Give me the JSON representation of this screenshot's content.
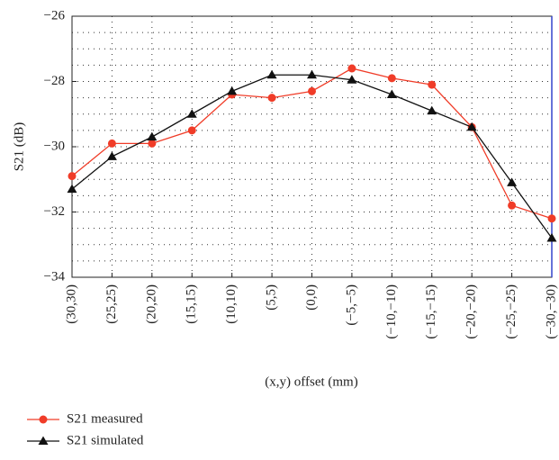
{
  "chart_data": {
    "type": "line",
    "ylabel": "S21 (dB)",
    "xlabel": "(x,y) offset (mm)",
    "categories": [
      "(30,30)",
      "(25,25)",
      "(20,20)",
      "(15,15)",
      "(10,10)",
      "(5,5)",
      "(0,0)",
      "(−5,−5)",
      "(−10,−10)",
      "(−15,−15)",
      "(−20,−20)",
      "(−25,−25)",
      "(−30,−30)"
    ],
    "series": [
      {
        "name": "S21 measured",
        "color": "#f03c28",
        "marker": "circle",
        "values": [
          -30.9,
          -29.9,
          -29.9,
          -29.5,
          -28.4,
          -28.5,
          -28.3,
          -27.6,
          -27.9,
          -28.1,
          -29.4,
          -31.8,
          -32.2
        ]
      },
      {
        "name": "S21 simulated",
        "color": "#111111",
        "marker": "triangle",
        "values": [
          -31.3,
          -30.3,
          -29.7,
          -29.0,
          -28.3,
          -27.8,
          -27.8,
          -27.95,
          -28.4,
          -28.9,
          -29.4,
          -31.1,
          -32.8
        ]
      }
    ],
    "ylim": [
      -34,
      -26
    ],
    "yticks": [
      {
        "value": -34,
        "label": "−34"
      },
      {
        "value": -32,
        "label": "−32"
      },
      {
        "value": -30,
        "label": "−30"
      },
      {
        "value": -28,
        "label": "−28"
      },
      {
        "value": -26,
        "label": "−26"
      }
    ],
    "yminor": [
      -33.5,
      -33,
      -32.5,
      -31.5,
      -31,
      -30.5,
      -29.5,
      -29,
      -28.5,
      -27.5,
      -27,
      -26.5
    ],
    "grid": true
  }
}
